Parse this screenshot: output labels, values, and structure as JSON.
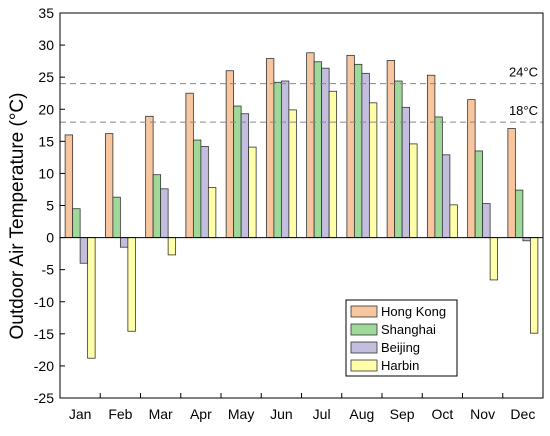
{
  "chart_data": {
    "type": "bar",
    "ylabel": "Outdoor Air Temperature (°C)",
    "ylim": [
      -25,
      35
    ],
    "yticks": [
      -25,
      -20,
      -15,
      -10,
      -5,
      0,
      5,
      10,
      15,
      20,
      25,
      30,
      35
    ],
    "categories": [
      "Jan",
      "Feb",
      "Mar",
      "Apr",
      "May",
      "Jun",
      "Jul",
      "Aug",
      "Sep",
      "Oct",
      "Nov",
      "Dec"
    ],
    "series": [
      {
        "name": "Hong Kong",
        "color": "#F7C69F",
        "values": [
          16.0,
          16.2,
          18.9,
          22.5,
          26.0,
          27.9,
          28.8,
          28.4,
          27.6,
          25.3,
          21.5,
          17.0
        ]
      },
      {
        "name": "Shanghai",
        "color": "#9ED99A",
        "values": [
          4.5,
          6.3,
          9.8,
          15.2,
          20.5,
          24.2,
          27.4,
          27.0,
          24.4,
          18.8,
          13.5,
          7.4
        ]
      },
      {
        "name": "Beijing",
        "color": "#C3BEDE",
        "values": [
          -4.0,
          -1.5,
          7.6,
          14.2,
          19.3,
          24.4,
          26.4,
          25.6,
          20.3,
          12.9,
          5.3,
          -0.5
        ]
      },
      {
        "name": "Harbin",
        "color": "#FFFFAA",
        "values": [
          -18.8,
          -14.6,
          -2.7,
          7.8,
          14.1,
          19.9,
          22.8,
          21.0,
          14.6,
          5.1,
          -6.6,
          -14.9
        ]
      }
    ],
    "reference_lines": [
      {
        "value": 24,
        "label": "24°C"
      },
      {
        "value": 18,
        "label": "18°C"
      }
    ],
    "legend_position": "bottom-right",
    "grid": false
  }
}
